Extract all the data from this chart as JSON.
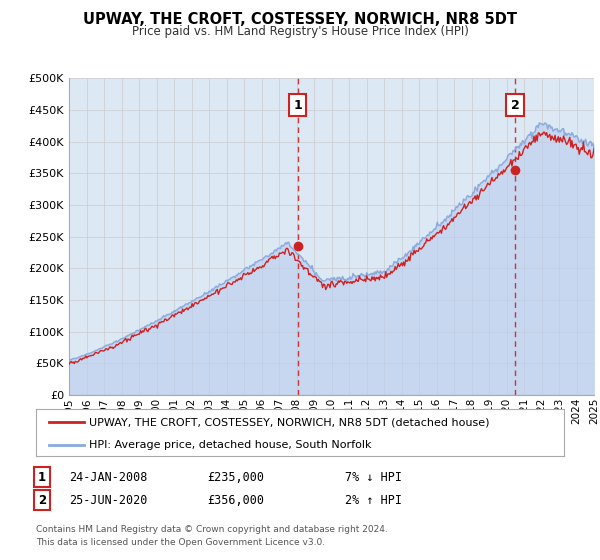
{
  "title": "UPWAY, THE CROFT, COSTESSEY, NORWICH, NR8 5DT",
  "subtitle": "Price paid vs. HM Land Registry's House Price Index (HPI)",
  "yticks": [
    0,
    50000,
    100000,
    150000,
    200000,
    250000,
    300000,
    350000,
    400000,
    450000,
    500000
  ],
  "ytick_labels": [
    "£0",
    "£50K",
    "£100K",
    "£150K",
    "£200K",
    "£250K",
    "£300K",
    "£350K",
    "£400K",
    "£450K",
    "£500K"
  ],
  "xmin_year": 1995,
  "xmax_year": 2025,
  "xtick_years": [
    1995,
    1996,
    1997,
    1998,
    1999,
    2000,
    2001,
    2002,
    2003,
    2004,
    2005,
    2006,
    2007,
    2008,
    2009,
    2010,
    2011,
    2012,
    2013,
    2014,
    2015,
    2016,
    2017,
    2018,
    2019,
    2020,
    2021,
    2022,
    2023,
    2024,
    2025
  ],
  "hpi_color": "#88aadd",
  "hpi_fill_color": "#bbccee",
  "price_color": "#cc2222",
  "background_color": "#dce9f5",
  "sale1_year": 2008.07,
  "sale1_price": 235000,
  "sale2_year": 2020.49,
  "sale2_price": 356000,
  "legend_label1": "UPWAY, THE CROFT, COSTESSEY, NORWICH, NR8 5DT (detached house)",
  "legend_label2": "HPI: Average price, detached house, South Norfolk",
  "annotation1_date": "24-JAN-2008",
  "annotation1_price": "£235,000",
  "annotation1_pct": "7% ↓ HPI",
  "annotation2_date": "25-JUN-2020",
  "annotation2_price": "£356,000",
  "annotation2_pct": "2% ↑ HPI",
  "footer": "Contains HM Land Registry data © Crown copyright and database right 2024.\nThis data is licensed under the Open Government Licence v3.0."
}
